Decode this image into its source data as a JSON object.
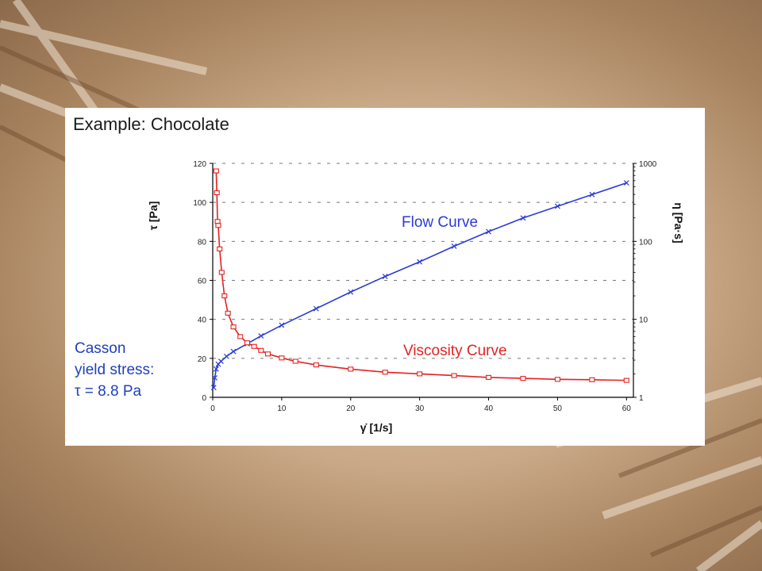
{
  "slide": {
    "title": "Example: Chocolate",
    "annotation": {
      "line1": "Casson",
      "line2": "yield stress:",
      "line3": "τ = 8.8 Pa"
    }
  },
  "chart_data": {
    "type": "line",
    "xlabel": "γ̇ [1/s]",
    "ylabel_left": "τ [Pa]",
    "ylabel_right": "η [Pa·s]",
    "xlim": [
      0,
      61
    ],
    "ylim_left": [
      0,
      120
    ],
    "ylim_right": [
      1,
      1000
    ],
    "y_right_scale": "log",
    "x_ticks": [
      0,
      10,
      20,
      30,
      40,
      50,
      60
    ],
    "y_left_ticks": [
      0,
      20,
      40,
      60,
      80,
      100,
      120
    ],
    "y_right_ticks": [
      1,
      10,
      100,
      1000
    ],
    "grid": "dashed horizontal",
    "series": [
      {
        "name": "Flow Curve",
        "axis": "left",
        "color": "#2b3bd6",
        "marker": "x",
        "x": [
          0.15,
          0.3,
          0.5,
          0.8,
          1.2,
          2,
          3,
          5,
          7,
          10,
          15,
          20,
          25,
          30,
          35,
          40,
          45,
          50,
          55,
          60
        ],
        "y": [
          5,
          10,
          14.5,
          17,
          18.5,
          21,
          23.5,
          27.5,
          31.5,
          37,
          45.5,
          54,
          62,
          69.5,
          77.5,
          85,
          92,
          98,
          104,
          110
        ]
      },
      {
        "name": "Viscosity Curve",
        "axis": "right",
        "color": "#e52222",
        "marker": "square",
        "x": [
          0.5,
          0.6,
          0.7,
          0.8,
          1,
          1.3,
          1.7,
          2.2,
          3,
          4,
          5,
          6,
          7,
          8,
          10,
          12,
          15,
          20,
          25,
          30,
          35,
          40,
          45,
          50,
          55,
          60
        ],
        "y": [
          800,
          420,
          180,
          160,
          80,
          40,
          20,
          12,
          8,
          6,
          5,
          4.5,
          4,
          3.6,
          3.2,
          2.9,
          2.6,
          2.3,
          2.1,
          2.0,
          1.9,
          1.8,
          1.75,
          1.7,
          1.68,
          1.65
        ]
      }
    ],
    "annotations": [
      "Flow Curve",
      "Viscosity Curve"
    ]
  }
}
